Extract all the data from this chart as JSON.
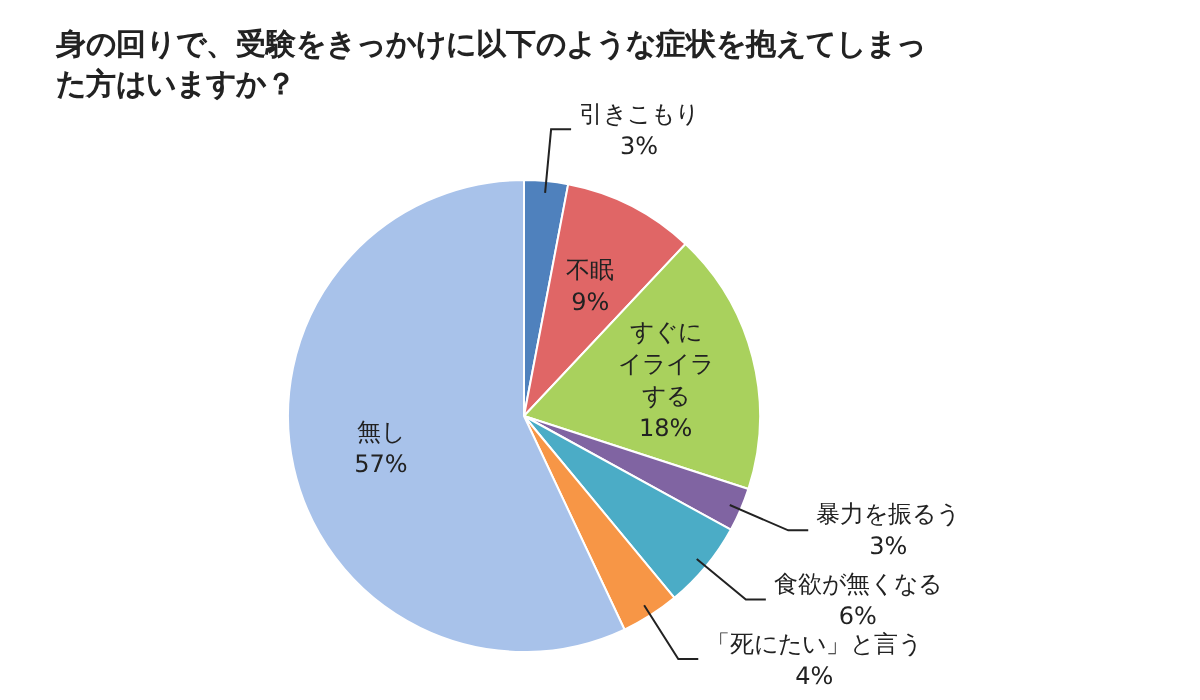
{
  "chart_data": {
    "type": "pie",
    "title": "身の回りで、受験をきっかけに以下のような症状を抱えてしまった方はいますか？",
    "categories": [
      "引きこもり",
      "不眠",
      "すぐにイライラする",
      "暴力を振るう",
      "食欲が無くなる",
      "「死にたい」と言う",
      "無し"
    ],
    "values": [
      3,
      9,
      18,
      3,
      6,
      4,
      57
    ],
    "value_labels": [
      "3%",
      "9%",
      "18%",
      "3%",
      "6%",
      "4%",
      "57%"
    ],
    "colors": [
      "#4f81bd",
      "#e06666",
      "#a9d15d",
      "#8064a2",
      "#4bacc6",
      "#f79646",
      "#a8c2ea"
    ]
  }
}
